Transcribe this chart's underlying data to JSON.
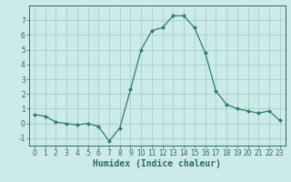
{
  "xlabel": "Humidex (Indice chaleur)",
  "ylabel": "",
  "x": [
    0,
    1,
    2,
    3,
    4,
    5,
    6,
    7,
    8,
    9,
    10,
    11,
    12,
    13,
    14,
    15,
    16,
    17,
    18,
    19,
    20,
    21,
    22,
    23
  ],
  "y": [
    0.6,
    0.5,
    0.1,
    0.0,
    -0.1,
    0.0,
    -0.2,
    -1.2,
    -0.3,
    2.3,
    5.0,
    6.3,
    6.5,
    7.3,
    7.3,
    6.5,
    4.8,
    2.2,
    1.3,
    1.0,
    0.85,
    0.7,
    0.85,
    0.2
  ],
  "line_color": "#2e7d72",
  "marker": "D",
  "marker_size": 2.0,
  "bg_color": "#cceae7",
  "grid_color": "#aad4d0",
  "ylim": [
    -1.5,
    8.0
  ],
  "xlim": [
    -0.5,
    23.5
  ],
  "yticks": [
    -1,
    0,
    1,
    2,
    3,
    4,
    5,
    6,
    7
  ],
  "xticks": [
    0,
    1,
    2,
    3,
    4,
    5,
    6,
    7,
    8,
    9,
    10,
    11,
    12,
    13,
    14,
    15,
    16,
    17,
    18,
    19,
    20,
    21,
    22,
    23
  ],
  "tick_label_fontsize": 5.5,
  "xlabel_fontsize": 7.0,
  "tick_color": "#2e6b62",
  "axis_color": "#2e6b62",
  "linewidth": 0.9
}
